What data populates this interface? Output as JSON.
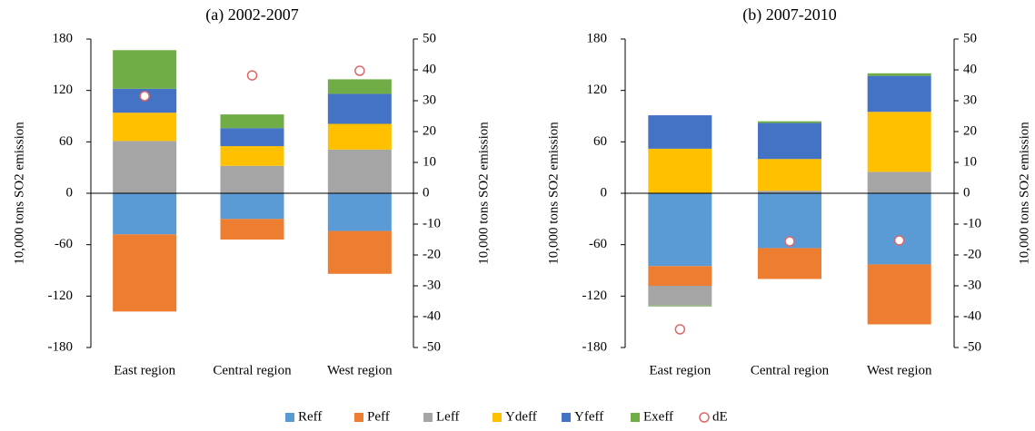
{
  "chart_data": [
    {
      "type": "bar",
      "stacked": true,
      "title": "(a) 2002-2007",
      "categories": [
        "East region",
        "Central region",
        "West region"
      ],
      "ylabel": "10,000 tons SO2 emission",
      "y2label": "10,000 tons SO2 emission",
      "ylim": [
        -180,
        180
      ],
      "yticks": [
        -180,
        -120,
        -60,
        0,
        60,
        120,
        180
      ],
      "y2lim": [
        -50,
        50
      ],
      "y2ticks": [
        -50,
        -40,
        -30,
        -20,
        -10,
        0,
        10,
        20,
        30,
        40,
        50
      ],
      "legend": "bottom",
      "series": [
        {
          "name": "Reff",
          "color": "#5b9bd5",
          "values": [
            -48,
            -30,
            -44
          ]
        },
        {
          "name": "Peff",
          "color": "#ed7d31",
          "values": [
            -90,
            -24,
            -50
          ]
        },
        {
          "name": "Leff",
          "color": "#a5a5a5",
          "values": [
            61,
            32,
            51
          ]
        },
        {
          "name": "Ydeff",
          "color": "#ffc000",
          "values": [
            33,
            23,
            30
          ]
        },
        {
          "name": "Yfeff",
          "color": "#4472c4",
          "values": [
            28,
            21,
            35
          ]
        },
        {
          "name": "Exeff",
          "color": "#70ad47",
          "values": [
            45,
            16,
            17
          ]
        },
        {
          "name": "dE",
          "color": "#e06666",
          "type": "scatter",
          "axis": "y2",
          "values": [
            31.5,
            38.2,
            39.7
          ]
        }
      ]
    },
    {
      "type": "bar",
      "stacked": true,
      "title": "(b) 2007-2010",
      "categories": [
        "East region",
        "Central region",
        "West region"
      ],
      "ylabel": "10,000 tons SO2 emission",
      "y2label": "10,000 tons SO2 emission",
      "ylim": [
        -180,
        180
      ],
      "yticks": [
        -180,
        -120,
        -60,
        0,
        60,
        120,
        180
      ],
      "y2lim": [
        -50,
        50
      ],
      "y2ticks": [
        -50,
        -40,
        -30,
        -20,
        -10,
        0,
        10,
        20,
        30,
        40,
        50
      ],
      "series": [
        {
          "name": "Reff",
          "color": "#5b9bd5",
          "values": [
            -85,
            -64,
            -83
          ]
        },
        {
          "name": "Peff",
          "color": "#ed7d31",
          "values": [
            -23,
            -36,
            -70
          ]
        },
        {
          "name": "Leff",
          "color": "#a5a5a5",
          "values": [
            -23,
            3,
            25
          ]
        },
        {
          "name": "Ydeff",
          "color": "#ffc000",
          "values": [
            52,
            37,
            70
          ]
        },
        {
          "name": "Yfeff",
          "color": "#4472c4",
          "values": [
            39,
            42,
            42
          ]
        },
        {
          "name": "Exeff",
          "color": "#70ad47",
          "values": [
            -1,
            2,
            3
          ]
        },
        {
          "name": "dE",
          "color": "#e06666",
          "type": "scatter",
          "axis": "y2",
          "values": [
            -44.1,
            -15.6,
            -15.3
          ]
        }
      ]
    }
  ]
}
